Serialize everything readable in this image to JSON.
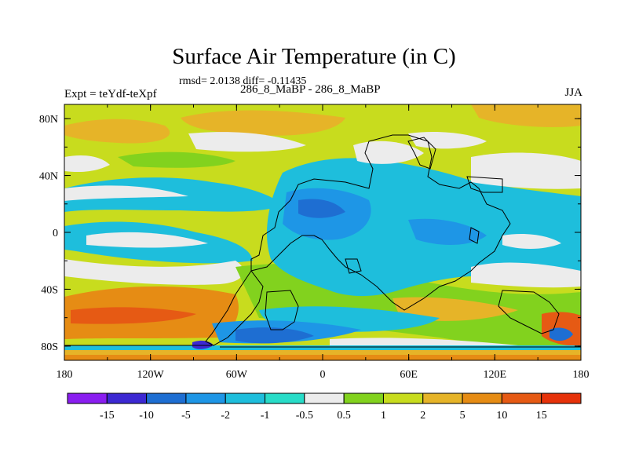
{
  "title": "Surface Air Temperature (in C)",
  "stats": "rmsd= 2.0138  diff= -0.11435",
  "experiment": "Expt = teYdf-teXpf",
  "subtitle": "286_8_MaBP - 286_8_MaBP",
  "season": "JJA",
  "map": {
    "lat_ticks": [
      "80N",
      "40N",
      "0",
      "40S",
      "80S"
    ],
    "lon_ticks": [
      "180",
      "120W",
      "60W",
      "0",
      "60E",
      "120E",
      "180"
    ],
    "lat_values": [
      80,
      40,
      0,
      -40,
      -80
    ],
    "lon_values": [
      -180,
      -120,
      -60,
      0,
      60,
      120,
      180
    ],
    "lat_range": [
      -90,
      90
    ],
    "lon_range": [
      -180,
      180
    ]
  },
  "colorbar": {
    "colors": [
      "#8a1ef0",
      "#3c28d2",
      "#1e6ed2",
      "#1e96e6",
      "#1ebedc",
      "#28dcc8",
      "#ececec",
      "#82d21e",
      "#c8dc1e",
      "#e6b428",
      "#e68c14",
      "#e65a14",
      "#e6320a"
    ],
    "labels": [
      "-15",
      "-10",
      "-5",
      "-2",
      "-1",
      "-0.5",
      "0.5",
      "1",
      "2",
      "5",
      "10",
      "15"
    ]
  },
  "field_colors": {
    "green": "#82d21e",
    "yellow_green": "#c8dc1e",
    "orange_light": "#e6b428",
    "orange": "#e68c14",
    "red_orange": "#e65a14",
    "white": "#ececec",
    "cyan": "#1ebedc",
    "light_blue": "#1e96e6",
    "blue": "#1e6ed2",
    "dark_blue": "#3c28d2"
  }
}
